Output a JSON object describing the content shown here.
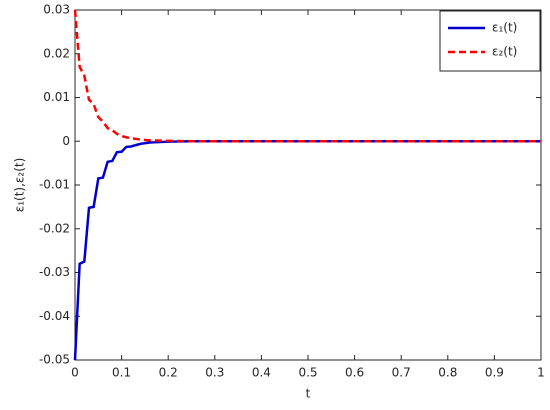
{
  "chart_data": {
    "type": "line",
    "x": [
      0,
      0.01,
      0.02,
      0.03,
      0.04,
      0.05,
      0.06,
      0.07,
      0.08,
      0.09,
      0.1,
      0.11,
      0.12,
      0.14,
      0.16,
      0.2,
      0.25,
      0.5,
      0.75,
      1
    ],
    "series": [
      {
        "name": "ε₁(t)",
        "color": "#0000cc",
        "dash": false,
        "values": [
          -0.05,
          -0.028,
          -0.0275,
          -0.0152,
          -0.015,
          -0.0085,
          -0.0083,
          -0.0047,
          -0.0045,
          -0.0025,
          -0.0024,
          -0.0013,
          -0.0012,
          -0.0006,
          -0.0003,
          -0.0001,
          0,
          0,
          0,
          0
        ]
      },
      {
        "name": "ε₂(t)",
        "color": "#ff0000",
        "dash": true,
        "values": [
          0.03,
          0.017,
          0.015,
          0.0095,
          0.0085,
          0.0055,
          0.0045,
          0.003,
          0.0025,
          0.0017,
          0.0012,
          0.0009,
          0.0007,
          0.0004,
          0.0002,
          0.0001,
          0,
          0,
          0,
          0
        ]
      }
    ],
    "xlabel": "t",
    "ylabel": "ε₁(t),ε₂(t)",
    "xlim": [
      0,
      1
    ],
    "xticks": [
      0,
      0.1,
      0.2,
      0.3,
      0.4,
      0.5,
      0.6,
      0.7,
      0.8,
      0.9,
      1
    ],
    "ylim": [
      -0.05,
      0.03
    ],
    "yticks": [
      -0.05,
      -0.04,
      -0.03,
      -0.02,
      -0.01,
      0,
      0.01,
      0.02,
      0.03
    ],
    "legend": "northeast",
    "grid": false
  }
}
